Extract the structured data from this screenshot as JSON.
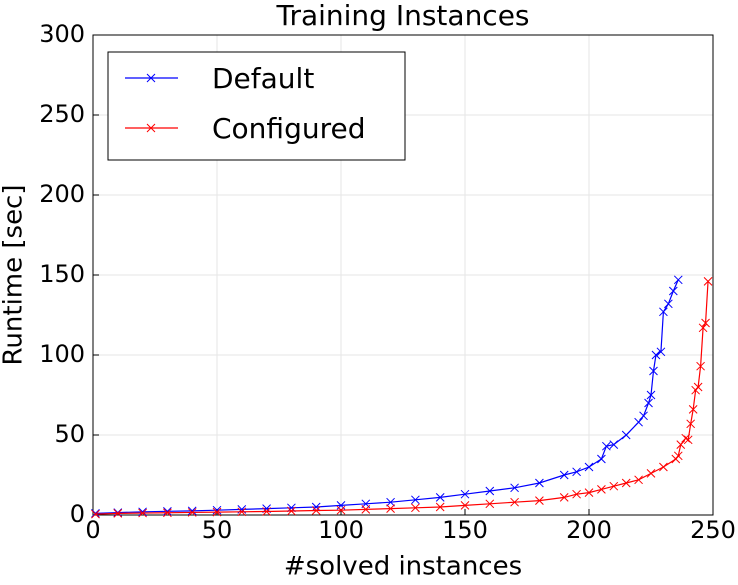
{
  "chart_data": {
    "type": "line",
    "title": "Training Instances",
    "x_label": "#solved instances",
    "y_label": "Runtime [sec]",
    "xlim": [
      0,
      250
    ],
    "xticks": [
      0,
      50,
      100,
      150,
      200,
      250
    ],
    "ylim": [
      0,
      300
    ],
    "yticks": [
      0,
      50,
      100,
      150,
      200,
      250,
      300
    ],
    "grid": true,
    "legend": "upper left",
    "series": [
      {
        "name": "Default",
        "color": "#0000ff",
        "x": [
          1,
          10,
          20,
          30,
          40,
          50,
          60,
          70,
          80,
          90,
          100,
          110,
          120,
          130,
          140,
          150,
          160,
          170,
          180,
          190,
          195,
          200,
          205,
          207,
          210,
          215,
          220,
          222,
          224,
          225,
          226,
          227,
          229,
          230,
          232,
          234,
          236
        ],
        "values": [
          1,
          1.5,
          2,
          2.3,
          2.6,
          3,
          3.5,
          4,
          4.5,
          5,
          6,
          7,
          8,
          9.5,
          11,
          13,
          15,
          17,
          20,
          25,
          27,
          30,
          35,
          43,
          44,
          50,
          58,
          62,
          70,
          75,
          90,
          100,
          102,
          127,
          132,
          140,
          147
        ]
      },
      {
        "name": "Configured",
        "color": "#ff0000",
        "x": [
          1,
          10,
          20,
          30,
          40,
          50,
          60,
          70,
          80,
          90,
          100,
          110,
          120,
          130,
          140,
          150,
          160,
          170,
          180,
          190,
          195,
          200,
          205,
          210,
          215,
          220,
          225,
          230,
          235,
          236,
          237,
          239,
          240,
          241,
          242,
          243,
          244,
          245,
          246,
          247,
          248
        ],
        "values": [
          0.5,
          1,
          1.2,
          1.4,
          1.6,
          1.8,
          2,
          2.2,
          2.5,
          2.8,
          3,
          3.5,
          4,
          4.5,
          5,
          6,
          7,
          8,
          9,
          11,
          13,
          14,
          16,
          18,
          20,
          22,
          26,
          30,
          35,
          37,
          44,
          48,
          47,
          57,
          66,
          78,
          80,
          93,
          117,
          120,
          146
        ]
      }
    ]
  }
}
